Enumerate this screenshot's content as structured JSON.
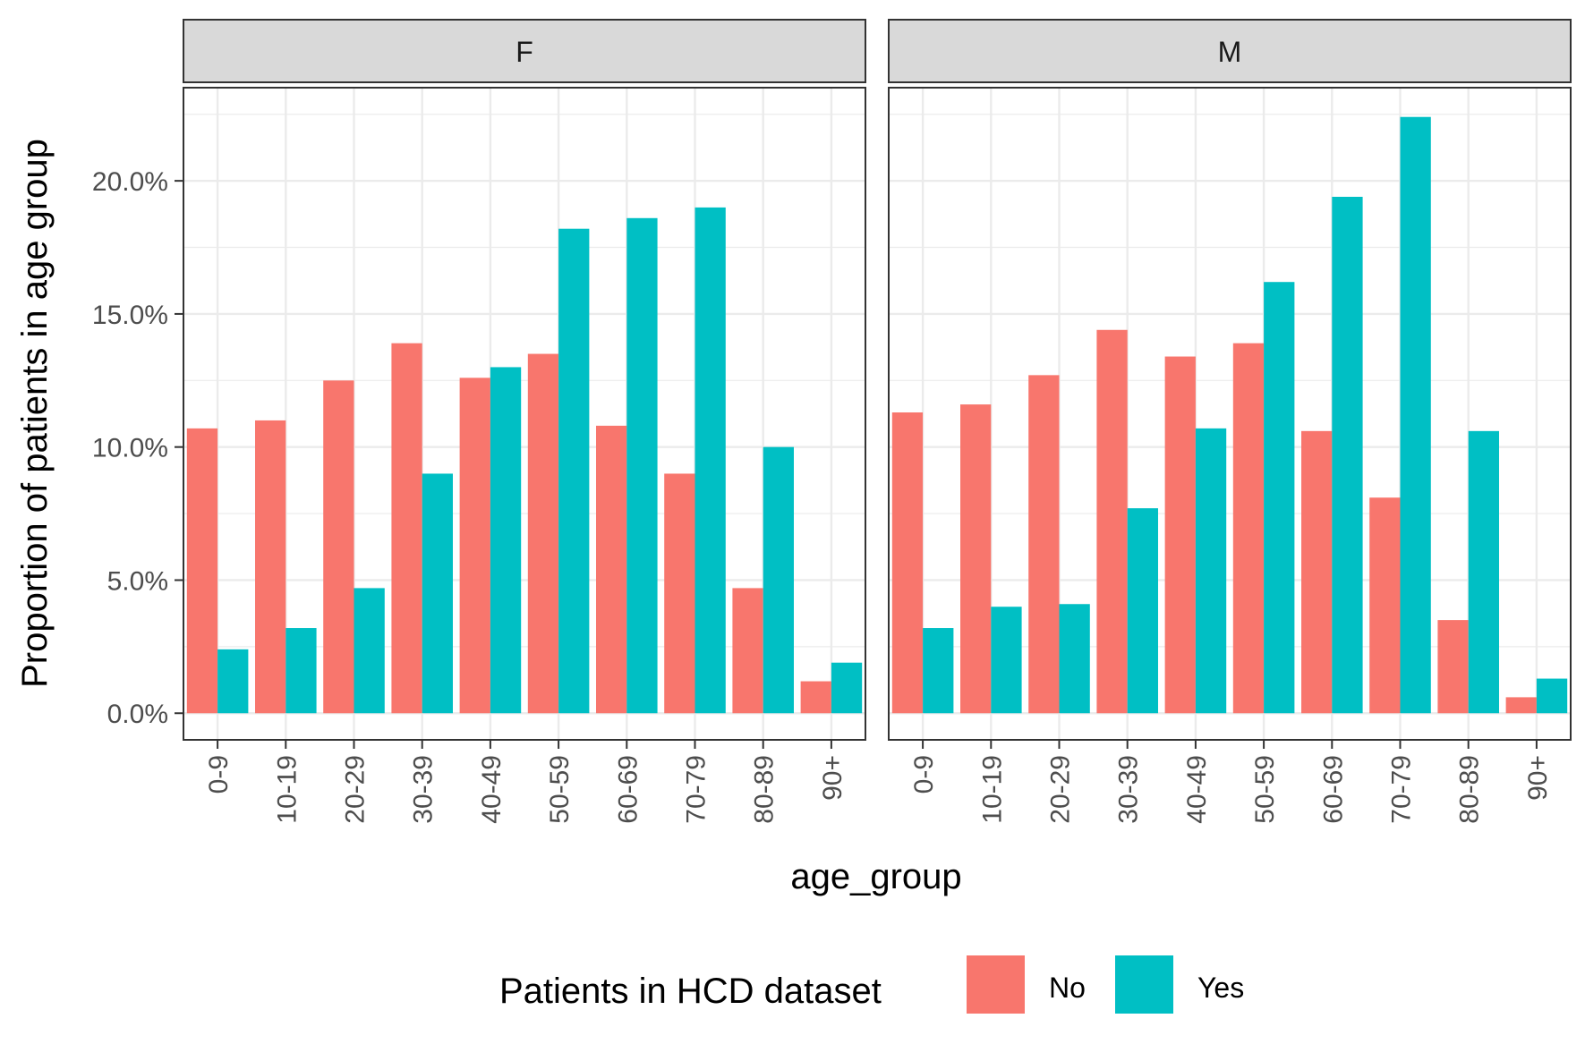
{
  "chart_data": {
    "type": "bar",
    "ylabel": "Proportion of patients in age group",
    "xlabel": "age_group",
    "ylim": [
      -0.01,
      0.235
    ],
    "y_ticks": [
      {
        "value": 0.0,
        "label": "0.0%"
      },
      {
        "value": 0.05,
        "label": "5.0%"
      },
      {
        "value": 0.1,
        "label": "10.0%"
      },
      {
        "value": 0.15,
        "label": "15.0%"
      },
      {
        "value": 0.2,
        "label": "20.0%"
      }
    ],
    "categories": [
      "0-9",
      "10-19",
      "20-29",
      "30-39",
      "40-49",
      "50-59",
      "60-69",
      "70-79",
      "80-89",
      "90+"
    ],
    "grid": true,
    "legend": {
      "title": "Patients in HCD dataset",
      "position": "bottom",
      "items": [
        {
          "label": "No",
          "color": "#F8766D"
        },
        {
          "label": "Yes",
          "color": "#00BFC4"
        }
      ]
    },
    "panels": [
      {
        "strip": "F",
        "series": [
          {
            "name": "No",
            "color": "#F8766D",
            "values": [
              0.107,
              0.11,
              0.125,
              0.139,
              0.126,
              0.135,
              0.108,
              0.09,
              0.047,
              0.012
            ]
          },
          {
            "name": "Yes",
            "color": "#00BFC4",
            "values": [
              0.024,
              0.032,
              0.047,
              0.09,
              0.13,
              0.182,
              0.186,
              0.19,
              0.1,
              0.019
            ]
          }
        ]
      },
      {
        "strip": "M",
        "series": [
          {
            "name": "No",
            "color": "#F8766D",
            "values": [
              0.113,
              0.116,
              0.127,
              0.144,
              0.134,
              0.139,
              0.106,
              0.081,
              0.035,
              0.006
            ]
          },
          {
            "name": "Yes",
            "color": "#00BFC4",
            "values": [
              0.032,
              0.04,
              0.041,
              0.077,
              0.107,
              0.162,
              0.194,
              0.224,
              0.106,
              0.013
            ]
          }
        ]
      }
    ]
  }
}
